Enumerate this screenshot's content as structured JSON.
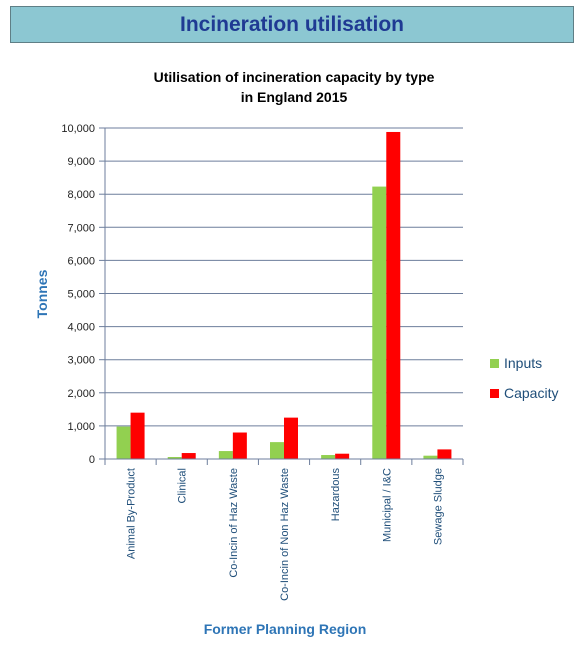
{
  "banner": {
    "title": "Incineration utilisation"
  },
  "chart_data": {
    "type": "bar",
    "title_lines": [
      "Utilisation of incineration capacity by type",
      "in England 2015"
    ],
    "xlabel": "Former Planning Region",
    "ylabel": "Tonnes",
    "ylim": [
      0,
      10000
    ],
    "yticks": [
      0,
      1000,
      2000,
      3000,
      4000,
      5000,
      6000,
      7000,
      8000,
      9000,
      10000
    ],
    "ytick_labels": [
      "0",
      "1,000",
      "2,000",
      "3,000",
      "4,000",
      "5,000",
      "6,000",
      "7,000",
      "8,000",
      "9,000",
      "10,000"
    ],
    "grid": true,
    "legend_position": "right",
    "categories": [
      "Animal By-Product",
      "Clinical",
      "Co-Incin of Haz Waste",
      "Co-Incin of Non Haz Waste",
      "Hazardous",
      "Municipal / I&C",
      "Sewage Sludge"
    ],
    "series": [
      {
        "name": "Inputs",
        "color": "#92d050",
        "values": [
          980,
          60,
          240,
          510,
          120,
          8230,
          100
        ]
      },
      {
        "name": "Capacity",
        "color": "#ff0000",
        "values": [
          1400,
          180,
          800,
          1250,
          160,
          9880,
          290
        ]
      }
    ]
  }
}
